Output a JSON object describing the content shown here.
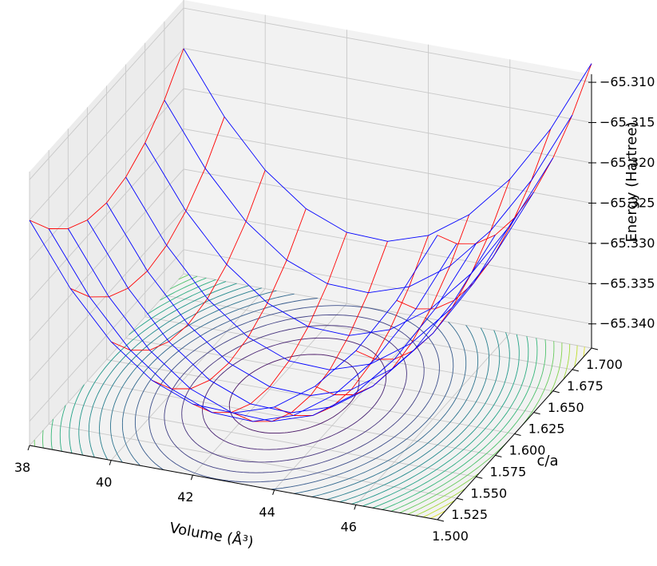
{
  "chart_data": {
    "type": "surface3d",
    "title": "",
    "xlabel": "Volume (Å³)",
    "ylabel": "c/a",
    "zlabel": "Energy (Hartree)",
    "xlim": [
      38,
      48
    ],
    "ylim": [
      1.5,
      1.7
    ],
    "zlim": [
      -65.343,
      -65.309
    ],
    "x_ticks": [
      "38",
      "40",
      "42",
      "44",
      "46"
    ],
    "y_ticks": [
      "1.500",
      "1.525",
      "1.550",
      "1.575",
      "1.600",
      "1.625",
      "1.650",
      "1.675",
      "1.700"
    ],
    "z_ticks": [
      "−65.340",
      "−65.335",
      "−65.330",
      "−65.325",
      "−65.320",
      "−65.315",
      "−65.310"
    ],
    "grid": true,
    "surface": {
      "model": "E = E0 + a*(V - V0)^2 + b*(c/a - r0)^2",
      "E0": -65.343,
      "V0": 42.6,
      "r0": 1.6,
      "a": 0.00092,
      "b": 0.85,
      "wire_color_volume_lines": "#ff0000",
      "wire_color_ratio_lines": "#0000ff",
      "volume_samples": [
        38,
        39,
        40,
        41,
        42,
        43,
        44,
        45,
        46,
        47,
        48
      ],
      "ratio_samples": [
        1.5,
        1.525,
        1.55,
        1.575,
        1.6,
        1.625,
        1.65,
        1.675,
        1.7
      ]
    },
    "contour": {
      "colormap": "viridis",
      "levels": 20,
      "projected_on": "bottom"
    }
  }
}
